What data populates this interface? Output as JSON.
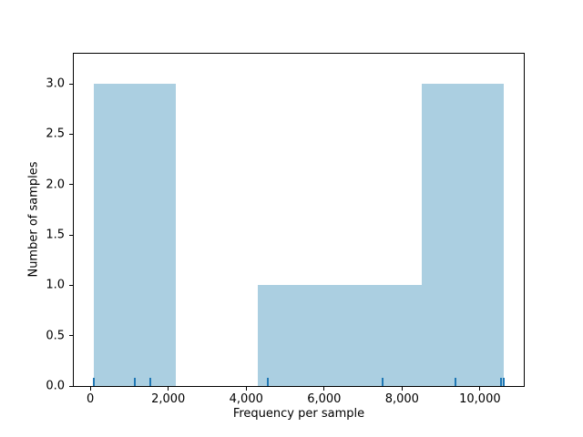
{
  "chart_data": {
    "type": "histogram",
    "title": "",
    "xlabel": "Frequency per sample",
    "ylabel": "Number of samples",
    "xlim": [
      -425,
      11125
    ],
    "ylim": [
      0,
      3.3
    ],
    "bin_edges": [
      100,
      2200,
      4300,
      6400,
      8500,
      10600
    ],
    "counts": [
      3,
      0,
      1,
      1,
      3
    ],
    "rug_values": [
      100,
      1140,
      1530,
      4560,
      7490,
      9370,
      10540,
      10600
    ],
    "x_ticks": [
      {
        "value": 0,
        "label": "0"
      },
      {
        "value": 2000,
        "label": "2,000"
      },
      {
        "value": 4000,
        "label": "4,000"
      },
      {
        "value": 6000,
        "label": "6,000"
      },
      {
        "value": 8000,
        "label": "8,000"
      },
      {
        "value": 10000,
        "label": "10,000"
      }
    ],
    "y_ticks": [
      {
        "value": 0.0,
        "label": "0.0"
      },
      {
        "value": 0.5,
        "label": "0.5"
      },
      {
        "value": 1.0,
        "label": "1.0"
      },
      {
        "value": 1.5,
        "label": "1.5"
      },
      {
        "value": 2.0,
        "label": "2.0"
      },
      {
        "value": 2.5,
        "label": "2.5"
      },
      {
        "value": 3.0,
        "label": "3.0"
      }
    ],
    "grid": false,
    "legend": false,
    "colors": {
      "bar_fill": "#abcfe1",
      "rug": "#1f77b4",
      "spine": "#000000",
      "text": "#000000",
      "background": "#ffffff"
    }
  }
}
